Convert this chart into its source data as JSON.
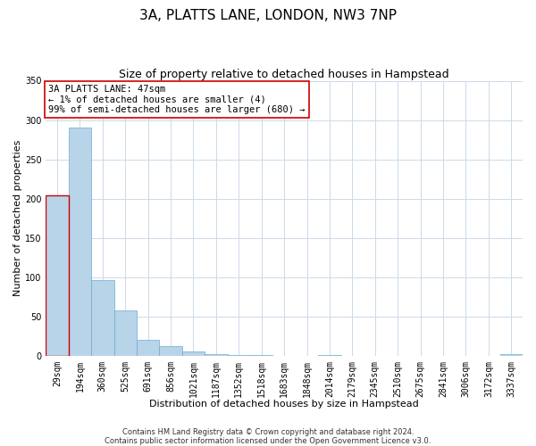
{
  "title": "3A, PLATTS LANE, LONDON, NW3 7NP",
  "subtitle": "Size of property relative to detached houses in Hampstead",
  "xlabel": "Distribution of detached houses by size in Hampstead",
  "ylabel": "Number of detached properties",
  "bar_labels": [
    "29sqm",
    "194sqm",
    "360sqm",
    "525sqm",
    "691sqm",
    "856sqm",
    "1021sqm",
    "1187sqm",
    "1352sqm",
    "1518sqm",
    "1683sqm",
    "1848sqm",
    "2014sqm",
    "2179sqm",
    "2345sqm",
    "2510sqm",
    "2675sqm",
    "2841sqm",
    "3006sqm",
    "3172sqm",
    "3337sqm"
  ],
  "bar_values": [
    204,
    290,
    96,
    58,
    20,
    12,
    5,
    2,
    1,
    1,
    0,
    0,
    1,
    0,
    0,
    0,
    0,
    0,
    0,
    0,
    2
  ],
  "bar_color": "#b8d4e8",
  "bar_edge_color": "#6aaad4",
  "annotation_box_text": "3A PLATTS LANE: 47sqm\n← 1% of detached houses are smaller (4)\n99% of semi-detached houses are larger (680) →",
  "annotation_box_color": "#cc0000",
  "ylim": [
    0,
    350
  ],
  "yticks": [
    0,
    50,
    100,
    150,
    200,
    250,
    300,
    350
  ],
  "footer_line1": "Contains HM Land Registry data © Crown copyright and database right 2024.",
  "footer_line2": "Contains public sector information licensed under the Open Government Licence v3.0.",
  "bg_color": "#ffffff",
  "grid_color": "#ccd9e8",
  "title_fontsize": 11,
  "subtitle_fontsize": 9,
  "label_fontsize": 8,
  "tick_fontsize": 7,
  "annotation_fontsize": 7.5,
  "footer_fontsize": 6
}
